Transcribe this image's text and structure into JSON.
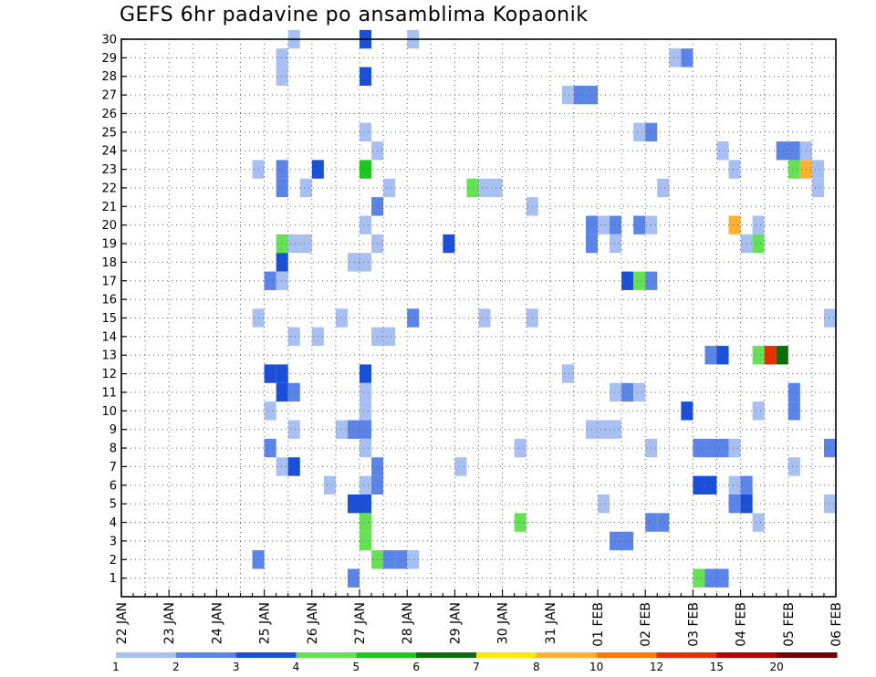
{
  "title": "GEFS 6hr padavine po ansamblima Kopaonik",
  "colors": {
    "frame": "#000000",
    "grid": "#606060"
  },
  "chart_data": {
    "type": "heatmap",
    "title": "GEFS 6hr padavine po ansamblima Kopaonik",
    "x_unit": "6-hour steps",
    "x_range": [
      0,
      60
    ],
    "y_range": [
      0,
      30
    ],
    "y_ticks": [
      1,
      2,
      3,
      4,
      5,
      6,
      7,
      8,
      9,
      10,
      11,
      12,
      13,
      14,
      15,
      16,
      17,
      18,
      19,
      20,
      21,
      22,
      23,
      24,
      25,
      26,
      27,
      28,
      29,
      30
    ],
    "x_ticks": [
      {
        "pos": 0,
        "label": "22 JAN"
      },
      {
        "pos": 4,
        "label": "23 JAN"
      },
      {
        "pos": 8,
        "label": "24 JAN"
      },
      {
        "pos": 12,
        "label": "25 JAN"
      },
      {
        "pos": 16,
        "label": "26 JAN"
      },
      {
        "pos": 20,
        "label": "27 JAN"
      },
      {
        "pos": 24,
        "label": "28 JAN"
      },
      {
        "pos": 28,
        "label": "29 JAN"
      },
      {
        "pos": 32,
        "label": "30 JAN"
      },
      {
        "pos": 36,
        "label": "31 JAN"
      },
      {
        "pos": 40,
        "label": "01 FEB"
      },
      {
        "pos": 44,
        "label": "02 FEB"
      },
      {
        "pos": 48,
        "label": "03 FEB"
      },
      {
        "pos": 52,
        "label": "04 FEB"
      },
      {
        "pos": 56,
        "label": "05 FEB"
      },
      {
        "pos": 60,
        "label": "06 FEB"
      }
    ],
    "grid": "dotted",
    "legend": {
      "placement": "bottom",
      "levels": [
        {
          "label": "1",
          "color": "#a8bff2"
        },
        {
          "label": "2",
          "color": "#5b84e8"
        },
        {
          "label": "3",
          "color": "#1a4fd8"
        },
        {
          "label": "4",
          "color": "#66e055"
        },
        {
          "label": "5",
          "color": "#1fc81f"
        },
        {
          "label": "6",
          "color": "#0b6e0b"
        },
        {
          "label": "7",
          "color": "#ffe600"
        },
        {
          "label": "8",
          "color": "#ffb030"
        },
        {
          "label": "10",
          "color": "#ff7a00"
        },
        {
          "label": "12",
          "color": "#e53000"
        },
        {
          "label": "15",
          "color": "#b80000"
        },
        {
          "label": "20",
          "color": "#6e0000"
        }
      ]
    },
    "cells": [
      [
        14.5,
        30,
        1
      ],
      [
        20.5,
        30,
        3
      ],
      [
        24.5,
        30,
        1
      ],
      [
        13.5,
        29,
        1
      ],
      [
        46.5,
        29,
        1
      ],
      [
        47.5,
        29,
        2
      ],
      [
        13.5,
        28,
        1
      ],
      [
        20.5,
        28,
        3
      ],
      [
        37.5,
        27,
        1
      ],
      [
        38.5,
        27,
        2
      ],
      [
        39.5,
        27,
        2
      ],
      [
        20.5,
        25,
        1
      ],
      [
        43.5,
        25,
        1
      ],
      [
        44.5,
        25,
        2
      ],
      [
        21.5,
        24,
        1
      ],
      [
        50.5,
        24,
        1
      ],
      [
        55.5,
        24,
        2
      ],
      [
        56.5,
        24,
        2
      ],
      [
        57.5,
        24,
        1
      ],
      [
        11.5,
        23,
        1
      ],
      [
        13.5,
        23,
        2
      ],
      [
        16.5,
        23,
        3
      ],
      [
        20.5,
        23,
        5
      ],
      [
        51.5,
        23,
        1
      ],
      [
        56.5,
        23,
        4
      ],
      [
        57.5,
        23,
        8
      ],
      [
        58.5,
        23,
        1
      ],
      [
        13.5,
        22,
        2
      ],
      [
        15.5,
        22,
        1
      ],
      [
        22.5,
        22,
        1
      ],
      [
        29.5,
        22,
        4
      ],
      [
        30.5,
        22,
        1
      ],
      [
        31.5,
        22,
        1
      ],
      [
        45.5,
        22,
        1
      ],
      [
        58.5,
        22,
        1
      ],
      [
        21.5,
        21,
        2
      ],
      [
        34.5,
        21,
        1
      ],
      [
        20.5,
        20,
        1
      ],
      [
        39.5,
        20,
        2
      ],
      [
        40.5,
        20,
        1
      ],
      [
        41.5,
        20,
        2
      ],
      [
        43.5,
        20,
        2
      ],
      [
        44.5,
        20,
        1
      ],
      [
        51.5,
        20,
        8
      ],
      [
        53.5,
        20,
        1
      ],
      [
        13.5,
        19,
        4
      ],
      [
        14.5,
        19,
        1
      ],
      [
        15.5,
        19,
        1
      ],
      [
        21.5,
        19,
        1
      ],
      [
        27.5,
        19,
        3
      ],
      [
        39.5,
        19,
        2
      ],
      [
        41.5,
        19,
        1
      ],
      [
        52.5,
        19,
        1
      ],
      [
        53.5,
        19,
        4
      ],
      [
        13.5,
        18,
        3
      ],
      [
        19.5,
        18,
        1
      ],
      [
        20.5,
        18,
        1
      ],
      [
        12.5,
        17,
        2
      ],
      [
        13.5,
        17,
        1
      ],
      [
        42.5,
        17,
        3
      ],
      [
        43.5,
        17,
        4
      ],
      [
        44.5,
        17,
        2
      ],
      [
        11.5,
        15,
        1
      ],
      [
        18.5,
        15,
        1
      ],
      [
        24.5,
        15,
        2
      ],
      [
        30.5,
        15,
        1
      ],
      [
        34.5,
        15,
        1
      ],
      [
        59.5,
        15,
        1
      ],
      [
        14.5,
        14,
        1
      ],
      [
        16.5,
        14,
        1
      ],
      [
        21.5,
        14,
        1
      ],
      [
        22.5,
        14,
        1
      ],
      [
        49.5,
        13,
        2
      ],
      [
        50.5,
        13,
        3
      ],
      [
        53.5,
        13,
        4
      ],
      [
        54.5,
        13,
        10
      ],
      [
        55.5,
        13,
        6
      ],
      [
        12.5,
        12,
        3
      ],
      [
        13.5,
        12,
        3
      ],
      [
        20.5,
        12,
        3
      ],
      [
        37.5,
        12,
        1
      ],
      [
        13.5,
        11,
        3
      ],
      [
        14.5,
        11,
        2
      ],
      [
        20.5,
        11,
        1
      ],
      [
        41.5,
        11,
        1
      ],
      [
        42.5,
        11,
        2
      ],
      [
        43.5,
        11,
        1
      ],
      [
        56.5,
        11,
        2
      ],
      [
        12.5,
        10,
        1
      ],
      [
        20.5,
        10,
        1
      ],
      [
        47.5,
        10,
        3
      ],
      [
        53.5,
        10,
        1
      ],
      [
        56.5,
        10,
        2
      ],
      [
        14.5,
        9,
        1
      ],
      [
        18.5,
        9,
        1
      ],
      [
        19.5,
        9,
        2
      ],
      [
        20.5,
        9,
        2
      ],
      [
        39.5,
        9,
        1
      ],
      [
        40.5,
        9,
        1
      ],
      [
        41.5,
        9,
        1
      ],
      [
        12.5,
        8,
        2
      ],
      [
        20.5,
        8,
        1
      ],
      [
        33.5,
        8,
        1
      ],
      [
        44.5,
        8,
        1
      ],
      [
        48.5,
        8,
        2
      ],
      [
        49.5,
        8,
        2
      ],
      [
        50.5,
        8,
        2
      ],
      [
        51.5,
        8,
        1
      ],
      [
        59.5,
        8,
        2
      ],
      [
        13.5,
        7,
        1
      ],
      [
        14.5,
        7,
        3
      ],
      [
        21.5,
        7,
        2
      ],
      [
        28.5,
        7,
        1
      ],
      [
        56.5,
        7,
        1
      ],
      [
        17.5,
        6,
        1
      ],
      [
        20.5,
        6,
        1
      ],
      [
        21.5,
        6,
        2
      ],
      [
        48.5,
        6,
        3
      ],
      [
        49.5,
        6,
        3
      ],
      [
        51.5,
        6,
        1
      ],
      [
        52.5,
        6,
        2
      ],
      [
        19.5,
        5,
        3
      ],
      [
        20.5,
        5,
        3
      ],
      [
        40.5,
        5,
        1
      ],
      [
        51.5,
        5,
        2
      ],
      [
        52.5,
        5,
        3
      ],
      [
        59.5,
        5,
        1
      ],
      [
        20.5,
        4,
        4
      ],
      [
        33.5,
        4,
        4
      ],
      [
        44.5,
        4,
        2
      ],
      [
        45.5,
        4,
        2
      ],
      [
        53.5,
        4,
        1
      ],
      [
        20.5,
        3,
        4
      ],
      [
        41.5,
        3,
        2
      ],
      [
        42.5,
        3,
        2
      ],
      [
        11.5,
        2,
        2
      ],
      [
        21.5,
        2,
        4
      ],
      [
        22.5,
        2,
        2
      ],
      [
        23.5,
        2,
        2
      ],
      [
        24.5,
        2,
        1
      ],
      [
        19.5,
        1,
        2
      ],
      [
        48.5,
        1,
        4
      ],
      [
        49.5,
        1,
        2
      ],
      [
        50.5,
        1,
        2
      ]
    ]
  }
}
